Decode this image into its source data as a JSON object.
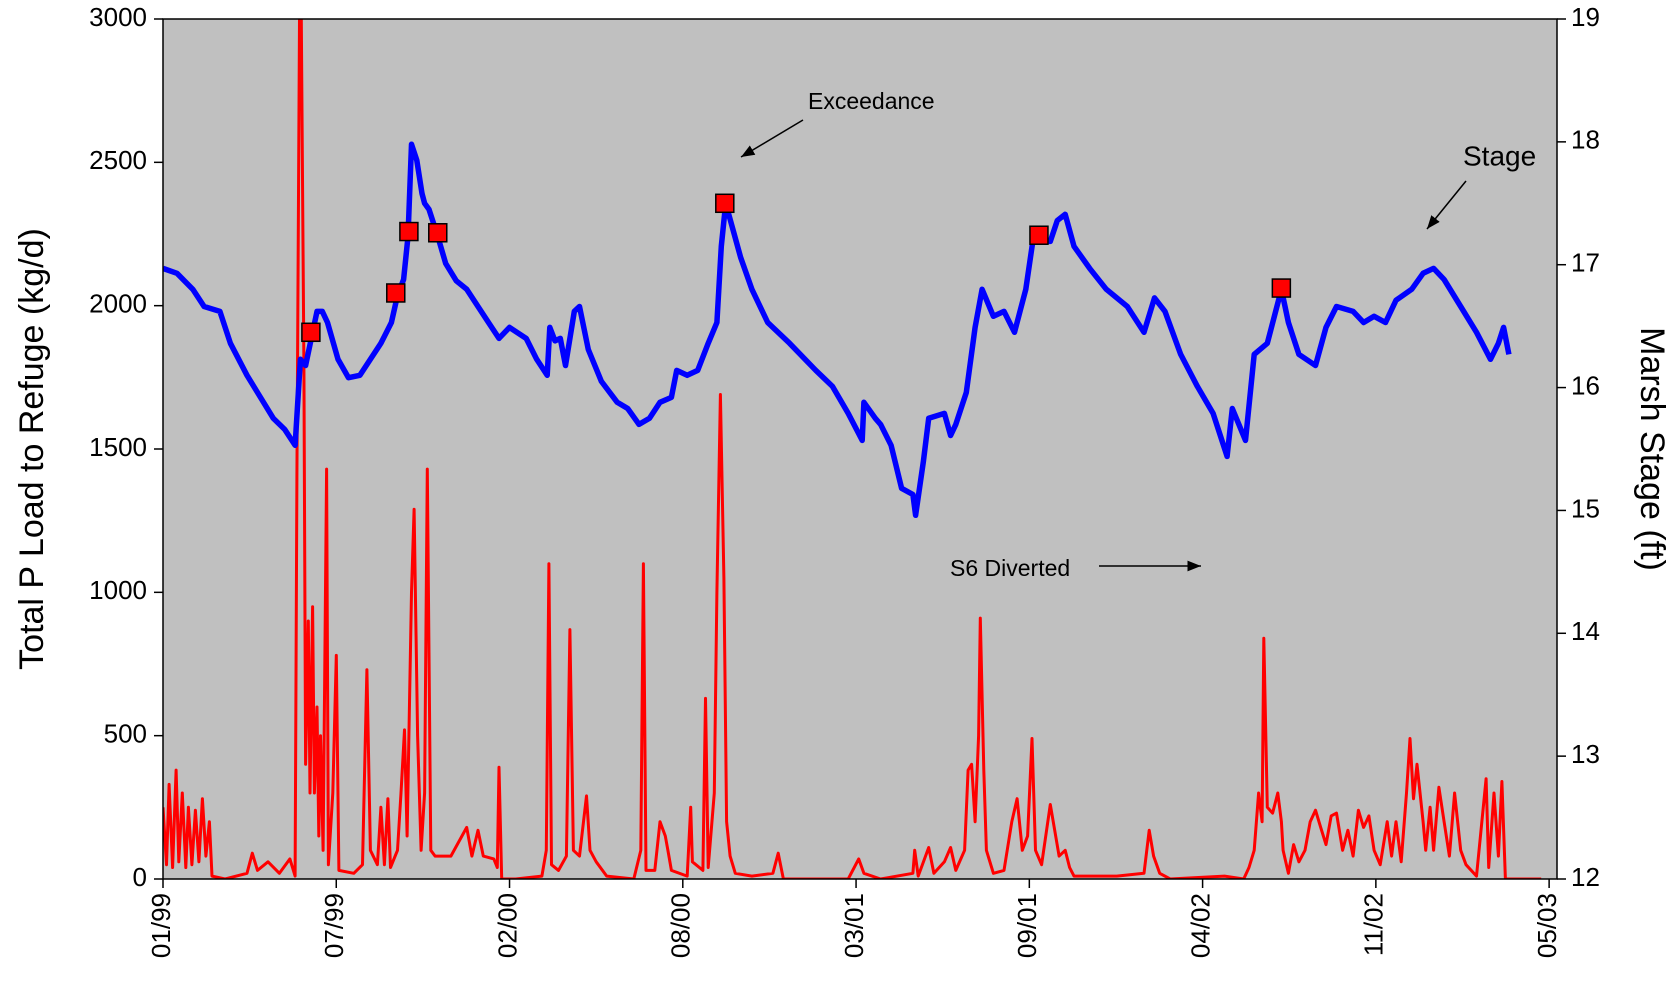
{
  "chart_data": {
    "type": "line",
    "ylabel": "Total P Load to Refuge (kg/d)",
    "y2label": "Marsh Stage (ft)",
    "background": "#c0c0c0",
    "xlim": [
      0,
      1593
    ],
    "xticks": [
      {
        "value": 0,
        "label": "01/99"
      },
      {
        "value": 198,
        "label": "07/99"
      },
      {
        "value": 396,
        "label": "02/00"
      },
      {
        "value": 594,
        "label": "08/00"
      },
      {
        "value": 792,
        "label": "03/01"
      },
      {
        "value": 990,
        "label": "09/01"
      },
      {
        "value": 1188,
        "label": "04/02"
      },
      {
        "value": 1386,
        "label": "11/02"
      },
      {
        "value": 1584,
        "label": "05/03"
      }
    ],
    "ylim": [
      0,
      3000
    ],
    "yticks": [
      0,
      500,
      1000,
      1500,
      2000,
      2500,
      3000
    ],
    "y2lim": [
      12,
      19
    ],
    "y2ticks": [
      12,
      13,
      14,
      15,
      16,
      17,
      18,
      19
    ],
    "annotations": [
      "Exceedance",
      "Stage",
      "S6 Diverted"
    ],
    "series": [
      {
        "color": "#ff0000",
        "width": 3,
        "x": [
          0,
          4,
          7,
          11,
          15,
          18,
          22,
          26,
          29,
          33,
          37,
          41,
          45,
          49,
          53,
          56,
          71,
          96,
          102,
          108,
          120,
          133,
          145,
          151,
          153,
          156,
          158,
          161,
          163,
          166,
          168,
          171,
          173,
          176,
          178,
          180,
          183,
          187,
          189,
          194,
          198,
          201,
          218,
          228,
          233,
          237,
          245,
          249,
          253,
          257,
          260,
          268,
          272,
          276,
          279,
          284,
          287,
          291,
          295,
          299,
          302,
          306,
          311,
          329,
          347,
          353,
          360,
          366,
          378,
          382,
          384,
          387,
          403,
          433,
          438,
          441,
          444,
          452,
          461,
          465,
          469,
          476,
          484,
          488,
          495,
          507,
          538,
          546,
          549,
          552,
          562,
          568,
          574,
          577,
          581,
          599,
          603,
          605,
          617,
          620,
          623,
          630,
          633,
          637,
          641,
          644,
          648,
          654,
          673,
          697,
          703,
          709,
          771,
          783,
          795,
          801,
          820,
          857,
          859,
          863,
          875,
          881,
          893,
          900,
          906,
          916,
          920,
          924,
          928,
          932,
          934,
          938,
          941,
          949,
          961,
          970,
          976,
          982,
          988,
          993,
          997,
          1004,
          1014,
          1019,
          1024,
          1031,
          1036,
          1041,
          1090,
          1121,
          1127,
          1132,
          1139,
          1151,
          1213,
          1235,
          1241,
          1247,
          1252,
          1256,
          1258,
          1262,
          1268,
          1274,
          1278,
          1280,
          1286,
          1292,
          1298,
          1305,
          1311,
          1317,
          1323,
          1329,
          1335,
          1341,
          1348,
          1354,
          1360,
          1366,
          1372,
          1378,
          1384,
          1391,
          1399,
          1404,
          1409,
          1415,
          1421,
          1425,
          1429,
          1433,
          1440,
          1443,
          1448,
          1452,
          1458,
          1464,
          1470,
          1476,
          1483,
          1489,
          1501,
          1512,
          1515,
          1521,
          1526,
          1530,
          1534,
          1575
        ],
        "values": [
          250,
          50,
          330,
          40,
          380,
          60,
          300,
          40,
          250,
          50,
          240,
          60,
          280,
          80,
          200,
          10,
          0,
          20,
          90,
          30,
          60,
          20,
          70,
          10,
          1400,
          3000,
          3000,
          1800,
          400,
          900,
          300,
          950,
          300,
          600,
          150,
          500,
          100,
          1430,
          50,
          300,
          780,
          30,
          20,
          50,
          730,
          100,
          50,
          250,
          50,
          280,
          40,
          100,
          300,
          520,
          150,
          1000,
          1290,
          500,
          100,
          300,
          1430,
          100,
          80,
          80,
          180,
          80,
          170,
          80,
          70,
          40,
          390,
          0,
          0,
          10,
          100,
          1100,
          50,
          30,
          80,
          870,
          100,
          80,
          290,
          100,
          60,
          10,
          0,
          100,
          1100,
          30,
          30,
          200,
          150,
          100,
          30,
          10,
          250,
          60,
          30,
          630,
          40,
          300,
          1000,
          1690,
          1050,
          200,
          80,
          20,
          10,
          20,
          90,
          0,
          0,
          0,
          70,
          20,
          0,
          20,
          100,
          10,
          110,
          20,
          60,
          110,
          30,
          100,
          380,
          400,
          200,
          500,
          910,
          380,
          100,
          20,
          30,
          200,
          280,
          100,
          150,
          490,
          100,
          50,
          260,
          170,
          80,
          100,
          40,
          10,
          10,
          20,
          170,
          80,
          20,
          0,
          10,
          0,
          40,
          100,
          300,
          200,
          840,
          250,
          230,
          300,
          200,
          100,
          20,
          120,
          60,
          100,
          200,
          240,
          180,
          120,
          220,
          230,
          100,
          170,
          80,
          240,
          180,
          220,
          100,
          50,
          200,
          80,
          200,
          60,
          300,
          490,
          280,
          400,
          200,
          100,
          250,
          100,
          320,
          200,
          80,
          300,
          100,
          50,
          10,
          350,
          40,
          300,
          80,
          340,
          0,
          0
        ]
      },
      {
        "color": "#0000ff",
        "width": 5.5,
        "axis": "y2",
        "x": [
          0,
          16,
          34,
          47,
          65,
          77,
          96,
          108,
          126,
          139,
          151,
          157,
          163,
          176,
          182,
          188,
          200,
          212,
          225,
          237,
          249,
          261,
          268,
          275,
          280,
          284,
          290,
          296,
          299,
          304,
          314,
          323,
          335,
          347,
          360,
          372,
          384,
          396,
          415,
          427,
          439,
          442,
          448,
          454,
          460,
          470,
          476,
          486,
          501,
          519,
          531,
          544,
          556,
          568,
          581,
          587,
          599,
          611,
          623,
          633,
          638,
          643,
          650,
          660,
          673,
          691,
          716,
          746,
          765,
          783,
          799,
          801,
          814,
          820,
          832,
          844,
          857,
          860,
          869,
          875,
          893,
          900,
          906,
          918,
          928,
          936,
          949,
          961,
          973,
          986,
          994,
          1004,
          1014,
          1022,
          1031,
          1041,
          1059,
          1078,
          1102,
          1121,
          1133,
          1145,
          1163,
          1182,
          1200,
          1216,
          1222,
          1237,
          1247,
          1262,
          1278,
          1286,
          1298,
          1317,
          1329,
          1341,
          1360,
          1372,
          1384,
          1397,
          1409,
          1427,
          1440,
          1452,
          1464,
          1483,
          1501,
          1517,
          1526,
          1532,
          1538
        ],
        "values": [
          16.97,
          16.93,
          16.8,
          16.66,
          16.62,
          16.36,
          16.1,
          15.96,
          15.75,
          15.66,
          15.53,
          16.23,
          16.18,
          16.62,
          16.62,
          16.53,
          16.23,
          16.08,
          16.1,
          16.23,
          16.36,
          16.53,
          16.75,
          16.88,
          17.23,
          17.98,
          17.85,
          17.58,
          17.5,
          17.45,
          17.23,
          17.01,
          16.87,
          16.8,
          16.66,
          16.53,
          16.4,
          16.49,
          16.4,
          16.23,
          16.1,
          16.49,
          16.38,
          16.4,
          16.18,
          16.62,
          16.66,
          16.31,
          16.05,
          15.88,
          15.83,
          15.7,
          15.75,
          15.88,
          15.92,
          16.14,
          16.1,
          16.14,
          16.36,
          16.53,
          17.15,
          17.5,
          17.32,
          17.06,
          16.8,
          16.53,
          16.36,
          16.14,
          16.01,
          15.79,
          15.57,
          15.88,
          15.75,
          15.7,
          15.53,
          15.18,
          15.13,
          14.96,
          15.4,
          15.75,
          15.79,
          15.61,
          15.7,
          15.96,
          16.49,
          16.8,
          16.58,
          16.62,
          16.45,
          16.8,
          17.19,
          17.19,
          17.19,
          17.36,
          17.41,
          17.15,
          16.97,
          16.8,
          16.66,
          16.45,
          16.73,
          16.62,
          16.27,
          16.01,
          15.79,
          15.44,
          15.83,
          15.57,
          16.27,
          16.36,
          16.8,
          16.53,
          16.27,
          16.18,
          16.49,
          16.66,
          16.62,
          16.53,
          16.58,
          16.53,
          16.71,
          16.8,
          16.93,
          16.97,
          16.88,
          16.66,
          16.45,
          16.23,
          16.36,
          16.49,
          16.27
        ]
      },
      {
        "color": "#ff0000",
        "axis": "y2",
        "marker": "square",
        "x": [
          169,
          266,
          281,
          314,
          642,
          1001,
          1278
        ],
        "values": [
          16.45,
          16.77,
          17.27,
          17.26,
          17.5,
          17.24,
          16.81
        ]
      }
    ]
  }
}
